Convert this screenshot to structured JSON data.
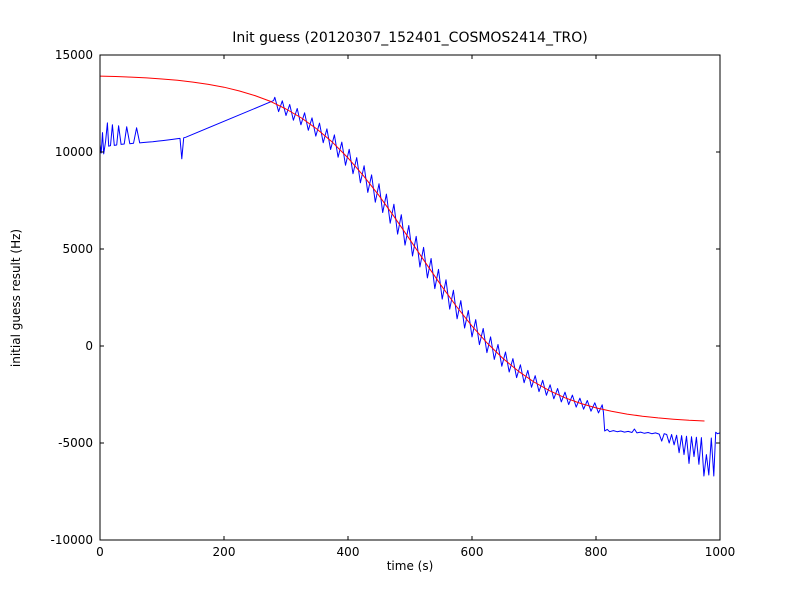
{
  "figure": {
    "background": "#ffffff",
    "frame_color": "#000000"
  },
  "chart_data": {
    "type": "line",
    "title": "Init guess (20120307_152401_COSMOS2414_TRO)",
    "xlabel": "time (s)",
    "ylabel": "initial guess result (Hz)",
    "xlim": [
      0,
      1000
    ],
    "ylim": [
      -10000,
      15000
    ],
    "grid": false,
    "legend": null,
    "xticks": {
      "values": [
        0,
        200,
        400,
        600,
        800,
        1000
      ],
      "labels": [
        "0",
        "200",
        "400",
        "600",
        "800",
        "1000"
      ]
    },
    "yticks": {
      "values": [
        -10000,
        -5000,
        0,
        5000,
        10000,
        15000
      ],
      "labels": [
        "-10000",
        "-5000",
        "0",
        "5000",
        "10000",
        "15000"
      ]
    },
    "series": [
      {
        "name": "initial-guess-data",
        "color": "#0000ff",
        "points": [
          [
            0,
            10400
          ],
          [
            2,
            9950
          ],
          [
            4,
            11000
          ],
          [
            6,
            9900
          ],
          [
            9,
            10550
          ],
          [
            12,
            11500
          ],
          [
            14,
            10300
          ],
          [
            17,
            10330
          ],
          [
            20,
            11400
          ],
          [
            23,
            10340
          ],
          [
            27,
            10360
          ],
          [
            30,
            11350
          ],
          [
            34,
            10390
          ],
          [
            39,
            10410
          ],
          [
            43,
            11300
          ],
          [
            48,
            10430
          ],
          [
            54,
            10450
          ],
          [
            59,
            11250
          ],
          [
            64,
            10470
          ],
          [
            70,
            10490
          ],
          [
            77,
            10510
          ],
          [
            85,
            10530
          ],
          [
            93,
            10560
          ],
          [
            101,
            10590
          ],
          [
            109,
            10620
          ],
          [
            117,
            10650
          ],
          [
            124,
            10680
          ],
          [
            129,
            10700
          ],
          [
            132,
            9650
          ],
          [
            135,
            10730
          ],
          [
            138,
            10760
          ],
          [
            280,
            12650
          ],
          [
            282,
            12820
          ],
          [
            288,
            12080
          ],
          [
            294,
            12640
          ],
          [
            300,
            11880
          ],
          [
            306,
            12450
          ],
          [
            312,
            11640
          ],
          [
            318,
            12240
          ],
          [
            324,
            11400
          ],
          [
            330,
            12020
          ],
          [
            336,
            11120
          ],
          [
            342,
            11760
          ],
          [
            348,
            10820
          ],
          [
            354,
            11490
          ],
          [
            360,
            10480
          ],
          [
            366,
            11190
          ],
          [
            372,
            10130
          ],
          [
            378,
            10880
          ],
          [
            384,
            9730
          ],
          [
            390,
            10510
          ],
          [
            396,
            9320
          ],
          [
            402,
            10140
          ],
          [
            408,
            8880
          ],
          [
            414,
            9710
          ],
          [
            420,
            8410
          ],
          [
            426,
            9290
          ],
          [
            432,
            7920
          ],
          [
            438,
            8820
          ],
          [
            444,
            7410
          ],
          [
            450,
            8360
          ],
          [
            456,
            6880
          ],
          [
            462,
            7830
          ],
          [
            468,
            6330
          ],
          [
            474,
            7310
          ],
          [
            480,
            5770
          ],
          [
            486,
            6770
          ],
          [
            492,
            5200
          ],
          [
            498,
            6210
          ],
          [
            504,
            4640
          ],
          [
            510,
            5650
          ],
          [
            516,
            4070
          ],
          [
            522,
            5080
          ],
          [
            528,
            3510
          ],
          [
            534,
            4510
          ],
          [
            540,
            2960
          ],
          [
            546,
            3950
          ],
          [
            552,
            2420
          ],
          [
            558,
            3410
          ],
          [
            564,
            1900
          ],
          [
            570,
            2870
          ],
          [
            576,
            1400
          ],
          [
            582,
            2340
          ],
          [
            588,
            930
          ],
          [
            594,
            1830
          ],
          [
            600,
            470
          ],
          [
            606,
            1360
          ],
          [
            612,
            70
          ],
          [
            618,
            900
          ],
          [
            624,
            -340
          ],
          [
            630,
            470
          ],
          [
            636,
            -690
          ],
          [
            642,
            75
          ],
          [
            648,
            -1040
          ],
          [
            654,
            -310
          ],
          [
            660,
            -1340
          ],
          [
            666,
            -650
          ],
          [
            672,
            -1630
          ],
          [
            678,
            -970
          ],
          [
            684,
            -1890
          ],
          [
            690,
            -1260
          ],
          [
            696,
            -2130
          ],
          [
            702,
            -1530
          ],
          [
            708,
            -2350
          ],
          [
            714,
            -1770
          ],
          [
            720,
            -2540
          ],
          [
            726,
            -2000
          ],
          [
            732,
            -2720
          ],
          [
            738,
            -2190
          ],
          [
            744,
            -2880
          ],
          [
            750,
            -2380
          ],
          [
            756,
            -3020
          ],
          [
            762,
            -2530
          ],
          [
            768,
            -3150
          ],
          [
            774,
            -2690
          ],
          [
            780,
            -3260
          ],
          [
            786,
            -2810
          ],
          [
            792,
            -3360
          ],
          [
            798,
            -2930
          ],
          [
            804,
            -3450
          ],
          [
            810,
            -3030
          ],
          [
            812,
            -3400
          ],
          [
            814,
            -4380
          ],
          [
            818,
            -4300
          ],
          [
            822,
            -4420
          ],
          [
            828,
            -4360
          ],
          [
            834,
            -4420
          ],
          [
            840,
            -4380
          ],
          [
            846,
            -4440
          ],
          [
            852,
            -4400
          ],
          [
            858,
            -4460
          ],
          [
            862,
            -4280
          ],
          [
            866,
            -4480
          ],
          [
            872,
            -4440
          ],
          [
            878,
            -4500
          ],
          [
            884,
            -4460
          ],
          [
            890,
            -4520
          ],
          [
            896,
            -4480
          ],
          [
            902,
            -4540
          ],
          [
            906,
            -4900
          ],
          [
            910,
            -4520
          ],
          [
            914,
            -4560
          ],
          [
            918,
            -5000
          ],
          [
            922,
            -4560
          ],
          [
            926,
            -5100
          ],
          [
            930,
            -4600
          ],
          [
            934,
            -5500
          ],
          [
            938,
            -4620
          ],
          [
            942,
            -5600
          ],
          [
            946,
            -4650
          ],
          [
            950,
            -6050
          ],
          [
            954,
            -4680
          ],
          [
            958,
            -5700
          ],
          [
            962,
            -4700
          ],
          [
            966,
            -6100
          ],
          [
            970,
            -4720
          ],
          [
            974,
            -6700
          ],
          [
            978,
            -5600
          ],
          [
            982,
            -6650
          ],
          [
            986,
            -4740
          ],
          [
            990,
            -6700
          ],
          [
            993,
            -4450
          ],
          [
            996,
            -4520
          ],
          [
            1000,
            -4480
          ]
        ]
      },
      {
        "name": "model-fit",
        "color": "#ff0000",
        "points": [
          [
            0,
            13913
          ],
          [
            25,
            13891
          ],
          [
            50,
            13861
          ],
          [
            75,
            13818
          ],
          [
            100,
            13763
          ],
          [
            125,
            13694
          ],
          [
            150,
            13603
          ],
          [
            175,
            13487
          ],
          [
            200,
            13341
          ],
          [
            225,
            13146
          ],
          [
            250,
            12908
          ],
          [
            275,
            12606
          ],
          [
            300,
            12219
          ],
          [
            325,
            11754
          ],
          [
            350,
            11182
          ],
          [
            375,
            10502
          ],
          [
            400,
            9696
          ],
          [
            425,
            8773
          ],
          [
            450,
            7752
          ],
          [
            475,
            6640
          ],
          [
            500,
            5473
          ],
          [
            525,
            4292
          ],
          [
            550,
            3133
          ],
          [
            575,
            2036
          ],
          [
            600,
            1027
          ],
          [
            625,
            135
          ],
          [
            650,
            -646
          ],
          [
            675,
            -1303
          ],
          [
            700,
            -1854
          ],
          [
            725,
            -2304
          ],
          [
            750,
            -2670
          ],
          [
            775,
            -2961
          ],
          [
            800,
            -3189
          ],
          [
            825,
            -3368
          ],
          [
            850,
            -3510
          ],
          [
            875,
            -3619
          ],
          [
            900,
            -3707
          ],
          [
            925,
            -3775
          ],
          [
            950,
            -3828
          ],
          [
            975,
            -3864
          ]
        ]
      }
    ]
  }
}
